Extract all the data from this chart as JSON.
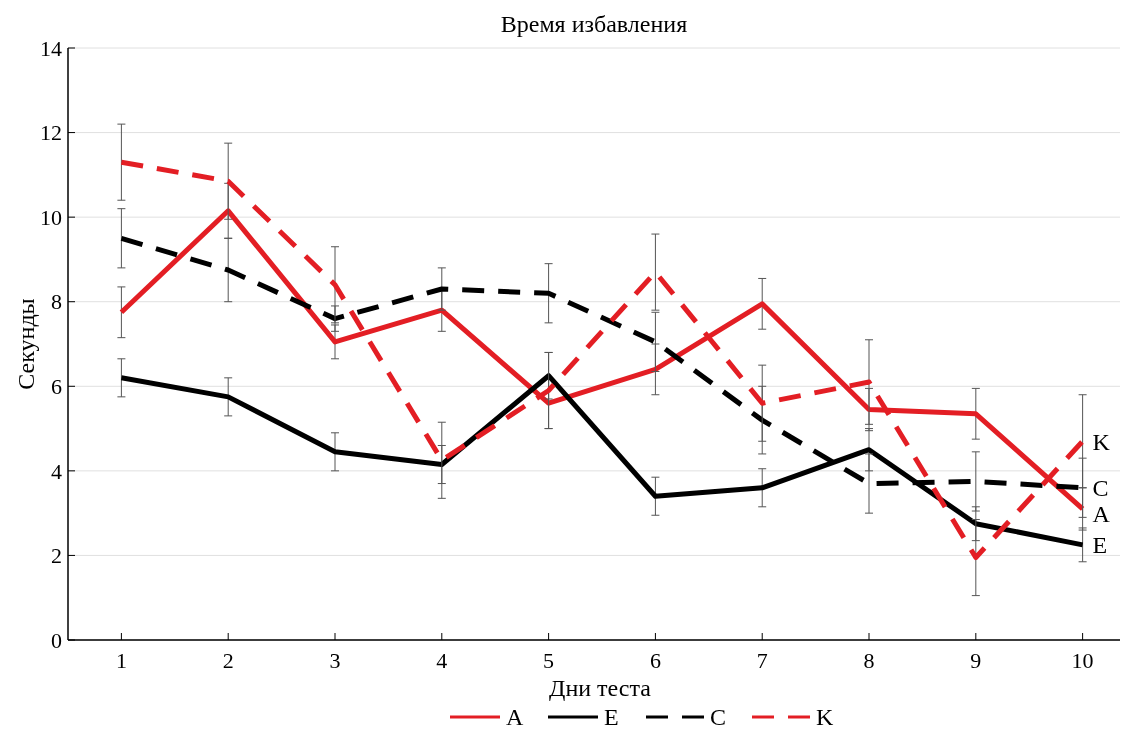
{
  "chart_data": {
    "type": "line",
    "title": "Время избавления",
    "xlabel": "Дни теста",
    "ylabel": "Секунды",
    "x": [
      1,
      2,
      3,
      4,
      5,
      6,
      7,
      8,
      9,
      10
    ],
    "xlim": [
      0.5,
      10.35
    ],
    "xticks": [
      1,
      2,
      3,
      4,
      5,
      6,
      7,
      8,
      9,
      10
    ],
    "ylim": [
      0,
      14
    ],
    "yticks": [
      0,
      2,
      4,
      6,
      8,
      10,
      12,
      14
    ],
    "grid": "y",
    "legend": "bottom",
    "series": [
      {
        "name": "A",
        "color": "#e31e24",
        "line_style": "solid",
        "values": [
          7.75,
          10.15,
          7.05,
          7.8,
          5.6,
          6.4,
          7.95,
          5.45,
          5.35,
          3.1
        ],
        "errors": [
          0.6,
          0.65,
          0.4,
          0.5,
          0.6,
          0.6,
          0.6,
          0.5,
          0.6,
          0.5
        ]
      },
      {
        "name": "E",
        "color": "#000000",
        "line_style": "solid",
        "values": [
          6.2,
          5.75,
          4.45,
          4.15,
          6.25,
          3.4,
          3.6,
          4.5,
          2.75,
          2.25
        ],
        "errors": [
          0.45,
          0.45,
          0.45,
          0.45,
          0.55,
          0.45,
          0.45,
          0.5,
          0.4,
          0.4
        ]
      },
      {
        "name": "C",
        "color": "#000000",
        "line_style": "dashed",
        "values": [
          9.5,
          8.75,
          7.6,
          8.3,
          8.2,
          7.05,
          5.2,
          3.7,
          3.75,
          3.6
        ],
        "errors": [
          0.7,
          0.75,
          0.3,
          0.5,
          0.7,
          0.7,
          0.8,
          0.7,
          0.7,
          0.7
        ]
      },
      {
        "name": "K",
        "color": "#e31e24",
        "line_style": "dashed",
        "values": [
          11.3,
          10.85,
          8.4,
          4.25,
          5.9,
          8.7,
          5.6,
          6.1,
          1.95,
          4.7
        ],
        "errors": [
          0.9,
          0.9,
          0.9,
          0.9,
          0.9,
          0.9,
          0.9,
          1.0,
          0.9,
          1.1
        ]
      }
    ]
  }
}
